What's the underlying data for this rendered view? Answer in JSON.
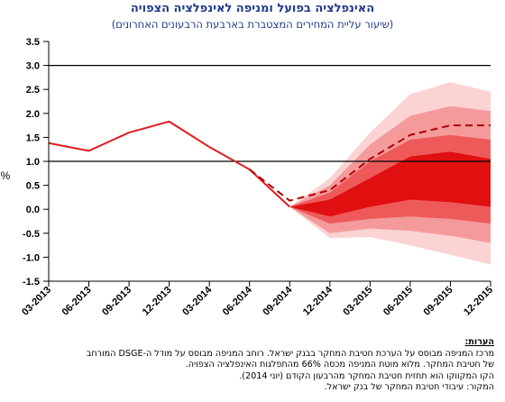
{
  "title": "האינפלציה בפועל ומניפה לאינפלציה הצפויה",
  "subtitle": "(שיעור עליית המחירים המצטברת בארבעת הרבעונים האחרונים)",
  "chart_data": {
    "type": "line",
    "ylabel": "%",
    "ylim": [
      -1.5,
      3.5
    ],
    "yticks": [
      "3.5",
      "3.0",
      "2.5",
      "2.0",
      "1.5",
      "1.0",
      "0.5",
      "0.0",
      "-0.5",
      "-1.0",
      "-1.5"
    ],
    "categories": [
      "03-2013",
      "06-2013",
      "09-2013",
      "12-2013",
      "03-2014",
      "06-2014",
      "09-2014",
      "12-2014",
      "03-2015",
      "06-2015",
      "09-2015",
      "12-2015"
    ],
    "reference_lines": [
      1.0,
      3.0
    ],
    "series": [
      {
        "style": "solid",
        "values": [
          1.38,
          1.22,
          1.6,
          1.83,
          1.3,
          0.83,
          0.05,
          null,
          null,
          null,
          null,
          null
        ]
      },
      {
        "style": "dashed",
        "values": [
          null,
          null,
          null,
          null,
          null,
          0.83,
          0.18,
          0.4,
          1.05,
          1.55,
          1.75,
          1.75
        ]
      }
    ],
    "fan": {
      "start_index": 6,
      "bands": [
        {
          "color": "#fbd3d3",
          "upper": [
            0.05,
            0.65,
            1.6,
            2.4,
            2.65,
            2.45
          ],
          "lower": [
            0.05,
            -0.6,
            -0.58,
            -0.75,
            -0.95,
            -1.15
          ]
        },
        {
          "color": "#f49a9a",
          "upper": [
            0.05,
            0.5,
            1.35,
            1.95,
            2.15,
            2.05
          ],
          "lower": [
            0.05,
            -0.5,
            -0.4,
            -0.45,
            -0.55,
            -0.7
          ]
        },
        {
          "color": "#ee5a5a",
          "upper": [
            0.05,
            0.35,
            1.0,
            1.45,
            1.55,
            1.45
          ],
          "lower": [
            0.05,
            -0.3,
            -0.2,
            -0.15,
            -0.2,
            -0.3
          ]
        },
        {
          "color": "#e01010",
          "upper": [
            0.05,
            0.2,
            0.65,
            1.1,
            1.2,
            1.05
          ],
          "lower": [
            0.05,
            -0.15,
            0.05,
            0.2,
            0.15,
            0.05
          ]
        }
      ]
    },
    "colors": {
      "actual": "#e01b1b",
      "forecast": "#b00000"
    }
  },
  "notes": {
    "header": "הערות:",
    "lines": [
      "מרכז המניפה מבוסס על הערכת חטיבת המחקר בבנק ישראל. רוחב המניפה מבוסס על מודל ה-DSGE המורחב",
      "של חטיבת המחקר. מלוא מוטת המניפה מכסה 66% מהתפלגות האינפלציה הצפויה.",
      "הקו המקווקו הוא תחזית חטיבת המחקר מהרבעון הקודם (יוני 2014).",
      "המקור: עיבודי חטיבת המחקר של בנק ישראל."
    ]
  }
}
